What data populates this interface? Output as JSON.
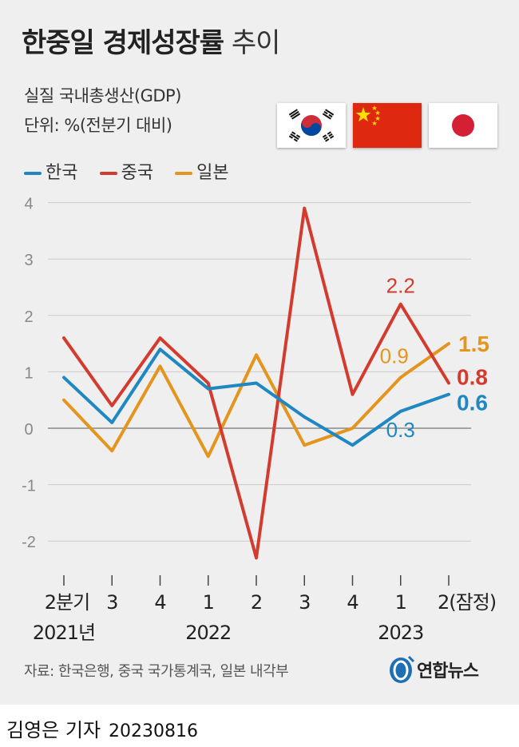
{
  "header": {
    "title_bold": "한중일 경제성장률",
    "title_light": "추이",
    "subtitle": "실질 국내총생산(GDP)",
    "unit": "단위: %(전분기 대비)"
  },
  "flags": [
    {
      "country": "한국",
      "icon": "south-korea-flag-icon"
    },
    {
      "country": "중국",
      "icon": "china-flag-icon"
    },
    {
      "country": "일본",
      "icon": "japan-flag-icon"
    }
  ],
  "colors": {
    "korea": "#1f87c2",
    "china": "#d23b2e",
    "japan": "#e3951e",
    "grid": "#cccccc",
    "zero": "#888888"
  },
  "chart_data": {
    "type": "line",
    "x": [
      "2분기",
      "3",
      "4",
      "1",
      "2",
      "3",
      "4",
      "1",
      "2(잠정)"
    ],
    "year_labels": [
      {
        "label": "2021년",
        "at_index": 0
      },
      {
        "label": "2022",
        "at_index": 3
      },
      {
        "label": "2023",
        "at_index": 7
      }
    ],
    "ylim": [
      -2.5,
      4
    ],
    "yticks": [
      4,
      3,
      2,
      1,
      0,
      -1,
      -2
    ],
    "grid": true,
    "series": [
      {
        "name": "한국",
        "color": "#1f87c2",
        "values": [
          0.9,
          0.1,
          1.4,
          0.7,
          0.8,
          0.2,
          -0.3,
          0.3,
          0.6
        ]
      },
      {
        "name": "중국",
        "color": "#d23b2e",
        "values": [
          1.6,
          0.4,
          1.6,
          0.8,
          -2.3,
          3.9,
          0.6,
          2.2,
          0.8
        ]
      },
      {
        "name": "일본",
        "color": "#e3951e",
        "values": [
          0.5,
          -0.4,
          1.1,
          -0.5,
          1.3,
          -0.3,
          0.0,
          0.9,
          1.5
        ]
      }
    ],
    "annotations": [
      {
        "series": "한국",
        "index": 7,
        "text": "0.3",
        "bold": false
      },
      {
        "series": "한국",
        "index": 8,
        "text": "0.6",
        "bold": true
      },
      {
        "series": "중국",
        "index": 7,
        "text": "2.2",
        "bold": false
      },
      {
        "series": "중국",
        "index": 8,
        "text": "0.8",
        "bold": true
      },
      {
        "series": "일본",
        "index": 7,
        "text": "0.9",
        "bold": false
      },
      {
        "series": "일본",
        "index": 8,
        "text": "1.5",
        "bold": true
      }
    ]
  },
  "footer": {
    "source": "자료: 한국은행, 중국 국가통계국, 일본 내각부",
    "logo_text": "연합뉴스",
    "byline": "김영은 기자",
    "date": "20230816"
  }
}
